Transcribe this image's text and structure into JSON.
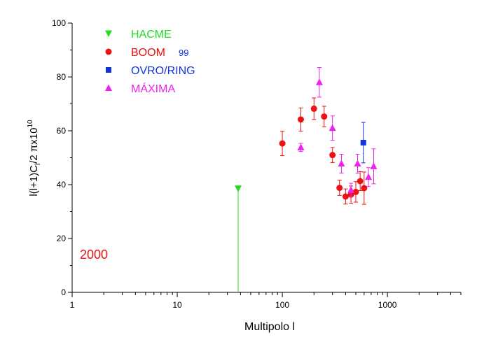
{
  "chart_data": {
    "type": "scatter",
    "xscale": "log",
    "xlim": [
      1,
      5000
    ],
    "ylim": [
      0,
      100
    ],
    "xlabel": "Multipolo l",
    "ylabel": "l(l+1)C",
    "ylabel_sub": "l",
    "ylabel_rest": "/2 πx10",
    "ylabel_sup": "10",
    "xticks": [
      {
        "value": 1,
        "label": "1"
      },
      {
        "value": 10,
        "label": "10"
      },
      {
        "value": 100,
        "label": "100"
      },
      {
        "value": 1000,
        "label": "1000"
      }
    ],
    "yticks": [
      {
        "value": 0,
        "label": "0"
      },
      {
        "value": 20,
        "label": "20"
      },
      {
        "value": 40,
        "label": "40"
      },
      {
        "value": 60,
        "label": "60"
      },
      {
        "value": 80,
        "label": "80"
      },
      {
        "value": 100,
        "label": "100"
      }
    ],
    "annotation": "2000",
    "series": [
      {
        "name": "HACME",
        "color": "#22dd22",
        "marker": "triangle-down",
        "points": [
          {
            "x": 38,
            "y": 38.5,
            "err": 0,
            "drop": true
          }
        ]
      },
      {
        "name": "BOOM",
        "legend_suffix": "99",
        "color": "#ee1111",
        "marker": "circle",
        "points": [
          {
            "x": 100,
            "y": 55.3,
            "err": 4.5
          },
          {
            "x": 150,
            "y": 64.2,
            "err": 4.3
          },
          {
            "x": 200,
            "y": 68.2,
            "err": 4.0
          },
          {
            "x": 250,
            "y": 65.3,
            "err": 3.8
          },
          {
            "x": 300,
            "y": 51.0,
            "err": 2.8
          },
          {
            "x": 350,
            "y": 38.8,
            "err": 2.8
          },
          {
            "x": 400,
            "y": 35.6,
            "err": 2.8
          },
          {
            "x": 450,
            "y": 36.3,
            "err": 3.2
          },
          {
            "x": 500,
            "y": 37.3,
            "err": 3.8
          },
          {
            "x": 550,
            "y": 41.3,
            "err": 3.5
          },
          {
            "x": 600,
            "y": 38.7,
            "err": 6.0
          }
        ]
      },
      {
        "name": "OVRO/RING",
        "color": "#1133dd",
        "marker": "square",
        "points": [
          {
            "x": 590,
            "y": 55.6,
            "err": 7.5
          }
        ]
      },
      {
        "name": "MÁXIMA",
        "color": "#ee22ee",
        "marker": "triangle-up",
        "points": [
          {
            "x": 150,
            "y": 53.8,
            "err": 1.5
          },
          {
            "x": 225,
            "y": 78.0,
            "err": 5.5
          },
          {
            "x": 300,
            "y": 61.0,
            "err": 4.5
          },
          {
            "x": 365,
            "y": 47.8,
            "err": 3.5
          },
          {
            "x": 450,
            "y": 38.0,
            "err": 2.5
          },
          {
            "x": 520,
            "y": 47.8,
            "err": 3.5
          },
          {
            "x": 660,
            "y": 42.8,
            "err": 3.5
          },
          {
            "x": 740,
            "y": 46.8,
            "err": 6.5
          }
        ]
      }
    ]
  }
}
